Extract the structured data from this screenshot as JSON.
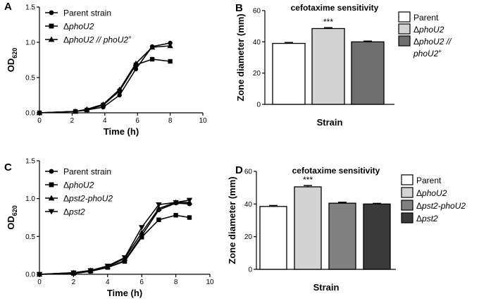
{
  "chart_data": [
    {
      "id": "A",
      "panel_label": "A",
      "type": "line",
      "xlabel": "Time (h)",
      "ylabel_main": "OD",
      "ylabel_sub": "620",
      "xlim": [
        0,
        10
      ],
      "ylim": [
        0,
        1.5
      ],
      "xticks": [
        "0",
        "2",
        "4",
        "6",
        "8",
        "10"
      ],
      "yticks": [
        "0.0",
        "0.5",
        "1.0",
        "1.5"
      ],
      "series": [
        {
          "name": "Parent strain",
          "legend_prefix": "",
          "legend_italic": "",
          "legend_sup": "",
          "marker": "circle",
          "x": [
            0,
            2.2,
            2.9,
            3.9,
            4.9,
            5.9,
            6.9,
            8
          ],
          "y": [
            0,
            0.02,
            0.04,
            0.08,
            0.25,
            0.62,
            0.94,
            0.99
          ]
        },
        {
          "name": "ΔphoU2",
          "legend_prefix": "Δ",
          "legend_italic": "phoU2",
          "legend_sup": "",
          "marker": "square",
          "x": [
            0,
            2.2,
            2.9,
            3.9,
            4.9,
            5.9,
            6.9,
            8
          ],
          "y": [
            0,
            0.02,
            0.04,
            0.11,
            0.31,
            0.68,
            0.76,
            0.73
          ]
        },
        {
          "name": "ΔphoU2 // phoU2+",
          "legend_prefix": "Δ",
          "legend_italic": "phoU2 // phoU2",
          "legend_sup": "+",
          "marker": "triangle",
          "x": [
            0,
            2.2,
            2.9,
            3.9,
            4.9,
            5.9,
            6.9,
            8
          ],
          "y": [
            0,
            0.02,
            0.05,
            0.12,
            0.33,
            0.7,
            0.93,
            0.95
          ]
        }
      ]
    },
    {
      "id": "B",
      "panel_label": "B",
      "type": "bar",
      "title": "cefotaxime sensitivity",
      "ylabel": "Zone diameter (mm)",
      "xlabel": "Strain",
      "ylim": [
        0,
        60
      ],
      "yticks": [
        "0",
        "20",
        "40",
        "60"
      ],
      "categories": [
        "Parent",
        "ΔphoU2",
        "ΔphoU2 // phoU2+"
      ],
      "values": [
        39,
        48.5,
        40
      ],
      "errors": [
        0.6,
        0.6,
        0.5
      ],
      "annotations": [
        {
          "category": "ΔphoU2",
          "text": "***"
        }
      ],
      "colors": [
        "#ffffff",
        "#d3d3d3",
        "#6e6e6e"
      ],
      "legend": [
        {
          "prefix": "",
          "italic": "",
          "suffix": "Parent",
          "sup": ""
        },
        {
          "prefix": "Δ",
          "italic": "phoU2",
          "suffix": "",
          "sup": ""
        },
        {
          "prefix": "Δ",
          "italic": "phoU2 //",
          "suffix": "",
          "sup": ""
        },
        {
          "prefix": "",
          "italic": "phoU2",
          "suffix": "",
          "sup": "+"
        }
      ]
    },
    {
      "id": "C",
      "panel_label": "C",
      "type": "line",
      "xlabel": "Time (h)",
      "ylabel_main": "OD",
      "ylabel_sub": "620",
      "xlim": [
        0,
        10
      ],
      "ylim": [
        0,
        1.5
      ],
      "xticks": [
        "0",
        "2",
        "4",
        "6",
        "8",
        "10"
      ],
      "yticks": [
        "0.0",
        "0.5",
        "1.0",
        "1.5"
      ],
      "series": [
        {
          "name": "Parent strain",
          "legend_prefix": "",
          "legend_italic": "",
          "legend_sup": "",
          "marker": "circle",
          "x": [
            0,
            2,
            3,
            4,
            5,
            6,
            7,
            8,
            8.8
          ],
          "y": [
            0,
            0.01,
            0.04,
            0.09,
            0.18,
            0.51,
            0.85,
            0.94,
            0.93
          ]
        },
        {
          "name": "ΔphoU2",
          "legend_prefix": "Δ",
          "legend_italic": "phoU2",
          "legend_sup": "",
          "marker": "square",
          "x": [
            0,
            2,
            3,
            4,
            5,
            6,
            7,
            8,
            8.8
          ],
          "y": [
            0,
            0.01,
            0.04,
            0.09,
            0.17,
            0.49,
            0.72,
            0.78,
            0.75
          ]
        },
        {
          "name": "Δpst2-phoU2",
          "legend_prefix": "Δ",
          "legend_italic": "pst2-phoU2",
          "legend_sup": "",
          "marker": "triangle",
          "x": [
            0,
            2,
            3,
            4,
            5,
            6,
            7,
            8,
            8.8
          ],
          "y": [
            0,
            0.02,
            0.05,
            0.1,
            0.21,
            0.55,
            0.87,
            0.95,
            0.95
          ]
        },
        {
          "name": "Δpst2",
          "legend_prefix": "Δ",
          "legend_italic": "pst2",
          "legend_sup": "",
          "marker": "triangle-down",
          "x": [
            0,
            2,
            3,
            4,
            5,
            6,
            7,
            8,
            8.8
          ],
          "y": [
            0,
            0.02,
            0.05,
            0.11,
            0.22,
            0.62,
            0.92,
            0.95,
            0.98
          ]
        }
      ]
    },
    {
      "id": "D",
      "panel_label": "D",
      "type": "bar",
      "title": "cefotaxime sensitivity",
      "ylabel": "Zone diameter (mm)",
      "xlabel": "Strain",
      "ylim": [
        0,
        60
      ],
      "yticks": [
        "0",
        "20",
        "40",
        "60"
      ],
      "categories": [
        "Parent",
        "ΔphoU2",
        "Δpst2-phoU2",
        "Δpst2"
      ],
      "values": [
        38.5,
        50.5,
        40.5,
        40
      ],
      "errors": [
        0.6,
        0.8,
        0.6,
        0.4
      ],
      "annotations": [
        {
          "category": "ΔphoU2",
          "text": "***"
        }
      ],
      "colors": [
        "#ffffff",
        "#d3d3d3",
        "#808080",
        "#3a3a3a"
      ],
      "legend": [
        {
          "prefix": "",
          "italic": "",
          "suffix": "Parent",
          "sup": ""
        },
        {
          "prefix": "Δ",
          "italic": "phoU2",
          "suffix": "",
          "sup": ""
        },
        {
          "prefix": "Δ",
          "italic": "pst2-phoU2",
          "suffix": "",
          "sup": ""
        },
        {
          "prefix": "Δ",
          "italic": "pst2",
          "suffix": "",
          "sup": ""
        }
      ]
    }
  ]
}
